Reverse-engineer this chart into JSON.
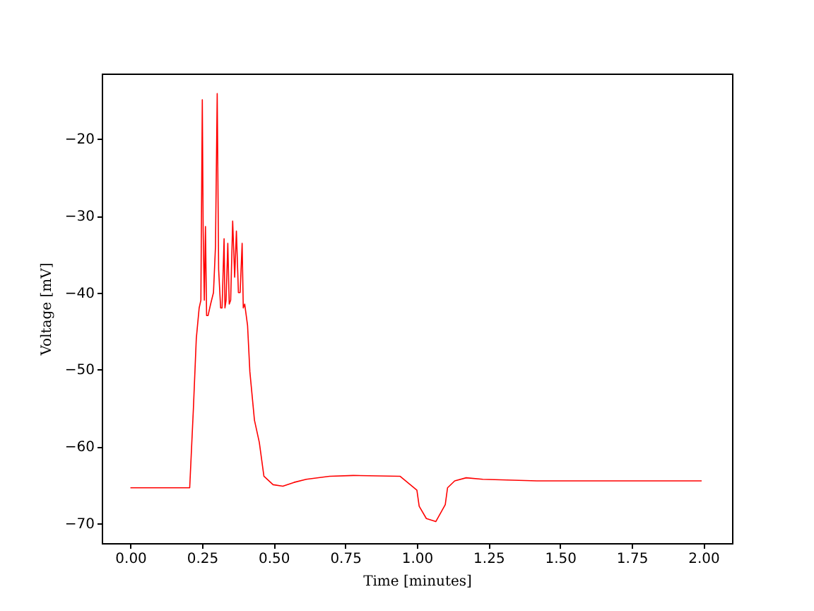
{
  "chart_data": {
    "type": "line",
    "xlabel": "Time [minutes]",
    "ylabel": "Voltage [mV]",
    "xlim": [
      -0.1,
      2.1
    ],
    "ylim": [
      -72.6,
      -11.5
    ],
    "xticks": [
      {
        "value": 0,
        "label": "0.00"
      },
      {
        "value": 0.25,
        "label": "0.25"
      },
      {
        "value": 0.5,
        "label": "0.50"
      },
      {
        "value": 0.75,
        "label": "0.75"
      },
      {
        "value": 1,
        "label": "1.00"
      },
      {
        "value": 1.25,
        "label": "1.25"
      },
      {
        "value": 1.5,
        "label": "1.50"
      },
      {
        "value": 1.75,
        "label": "1.75"
      },
      {
        "value": 2,
        "label": "2.00"
      }
    ],
    "yticks": [
      {
        "value": -70,
        "label": "−70"
      },
      {
        "value": -60,
        "label": "−60"
      },
      {
        "value": -50,
        "label": "−50"
      },
      {
        "value": -40,
        "label": "−40"
      },
      {
        "value": -30,
        "label": "−30"
      },
      {
        "value": -20,
        "label": "−20"
      }
    ],
    "grid": false,
    "marker": "none",
    "line_style": "solid",
    "series": [
      {
        "color": "#ff0000",
        "x": [
          0,
          0.1,
          0.207,
          0.22,
          0.23,
          0.24,
          0.246,
          0.251,
          0.254,
          0.258,
          0.262,
          0.266,
          0.271,
          0.28,
          0.29,
          0.297,
          0.303,
          0.308,
          0.315,
          0.32,
          0.327,
          0.33,
          0.334,
          0.34,
          0.345,
          0.35,
          0.357,
          0.364,
          0.37,
          0.377,
          0.383,
          0.39,
          0.394,
          0.399,
          0.409,
          0.417,
          0.433,
          0.45,
          0.466,
          0.498,
          0.532,
          0.571,
          0.614,
          0.695,
          0.778,
          0.941,
          1.0,
          1.008,
          1.033,
          1.066,
          1.099,
          1.107,
          1.132,
          1.172,
          1.23,
          1.419,
          1.581,
          1.76,
          1.994
        ],
        "values": [
          -65.4,
          -65.4,
          -65.4,
          -55,
          -46,
          -42,
          -41,
          -14.9,
          -32,
          -41,
          -31.4,
          -43,
          -43,
          -41.5,
          -40,
          -34,
          -14.1,
          -37,
          -42,
          -42,
          -33,
          -42,
          -41,
          -33.6,
          -41.5,
          -41,
          -30.7,
          -38,
          -32,
          -40,
          -40,
          -33.6,
          -42,
          -41.5,
          -44.3,
          -50.3,
          -56.6,
          -59.5,
          -63.9,
          -65,
          -65.2,
          -64.7,
          -64.3,
          -63.9,
          -63.8,
          -63.9,
          -65.7,
          -67.8,
          -69.4,
          -69.8,
          -67.6,
          -65.4,
          -64.5,
          -64.1,
          -64.3,
          -64.5,
          -64.5,
          -64.5,
          -64.5
        ]
      }
    ]
  }
}
